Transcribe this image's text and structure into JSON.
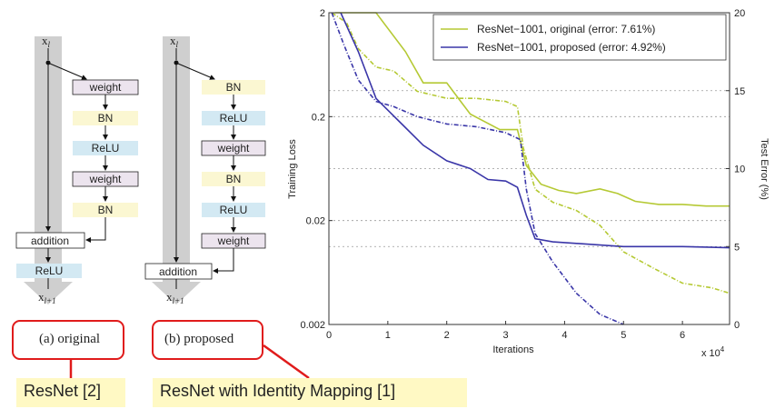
{
  "diagram_a": {
    "input_label": "x",
    "input_sub": "l",
    "output_label": "x",
    "output_sub": "l+1",
    "blocks": [
      "weight",
      "BN",
      "ReLU",
      "weight",
      "BN"
    ],
    "addition_label": "addition",
    "post_relu_label": "ReLU",
    "caption": "(a) original"
  },
  "diagram_b": {
    "input_label": "x",
    "input_sub": "l",
    "output_label": "x",
    "output_sub": "l+1",
    "blocks": [
      "BN",
      "ReLU",
      "weight",
      "BN",
      "ReLU",
      "weight"
    ],
    "addition_label": "addition",
    "caption": "(b) proposed"
  },
  "notes": {
    "left": "ResNet [2]",
    "right": "ResNet with Identity Mapping [1]"
  },
  "colors": {
    "weight_fill": "#ece4ee",
    "bn_fill": "#fbf7d2",
    "relu_fill": "#d3e9f3",
    "shortcut": "#cfcfcf",
    "callout": "#e01b1b",
    "note_bg": "#fff9c4",
    "original": "#b5c934",
    "proposed": "#3a36a8"
  },
  "chart_data": {
    "type": "line",
    "xlabel": "Iterations",
    "x_multiplier_label": "x 10",
    "x_multiplier_exp": "4",
    "ylabel_left": "Training Loss",
    "ylabel_right": "Test Error (%)",
    "xlim": [
      0,
      6.8
    ],
    "x_ticks": [
      0,
      1,
      2,
      3,
      4,
      5,
      6
    ],
    "ylim_left": [
      0.002,
      2
    ],
    "y_ticks_left": [
      {
        "value": 2,
        "label": "2"
      },
      {
        "value": 0.2,
        "label": "0.2"
      },
      {
        "value": 0.02,
        "label": "0.02"
      },
      {
        "value": 0.002,
        "label": "0.002"
      }
    ],
    "left_scale": "log",
    "ylim_right": [
      0,
      20
    ],
    "y_ticks_right": [
      0,
      5,
      10,
      15,
      20
    ],
    "grid": "horizontal dotted",
    "legend_position": "top-right",
    "series": [
      {
        "name": "ResNet−1001, original (error: 7.61%)",
        "color": "#b5c934",
        "test_error": [
          [
            0.1,
            20
          ],
          [
            0.8,
            20
          ],
          [
            1.3,
            17.5
          ],
          [
            1.6,
            15.5
          ],
          [
            2.0,
            15.5
          ],
          [
            2.4,
            13.5
          ],
          [
            2.9,
            12.5
          ],
          [
            3.2,
            12.5
          ],
          [
            3.35,
            10.2
          ],
          [
            3.6,
            9.0
          ],
          [
            3.9,
            8.6
          ],
          [
            4.2,
            8.4
          ],
          [
            4.6,
            8.7
          ],
          [
            4.9,
            8.4
          ],
          [
            5.2,
            7.9
          ],
          [
            5.6,
            7.7
          ],
          [
            6.0,
            7.7
          ],
          [
            6.4,
            7.6
          ],
          [
            6.8,
            7.6
          ]
        ],
        "train_loss": [
          [
            0.05,
            2
          ],
          [
            0.3,
            1.6
          ],
          [
            0.5,
            0.9
          ],
          [
            0.8,
            0.6
          ],
          [
            1.1,
            0.55
          ],
          [
            1.5,
            0.35
          ],
          [
            2.0,
            0.3
          ],
          [
            2.5,
            0.3
          ],
          [
            3.0,
            0.28
          ],
          [
            3.2,
            0.25
          ],
          [
            3.3,
            0.1
          ],
          [
            3.5,
            0.04
          ],
          [
            3.8,
            0.03
          ],
          [
            4.2,
            0.025
          ],
          [
            4.6,
            0.018
          ],
          [
            5.0,
            0.01
          ],
          [
            5.5,
            0.007
          ],
          [
            6.0,
            0.005
          ],
          [
            6.5,
            0.0045
          ],
          [
            6.8,
            0.004
          ]
        ]
      },
      {
        "name": "ResNet−1001, proposed (error: 4.92%)",
        "color": "#3a36a8",
        "test_error": [
          [
            0.2,
            20
          ],
          [
            0.5,
            17.5
          ],
          [
            0.8,
            14.5
          ],
          [
            1.2,
            13.0
          ],
          [
            1.6,
            11.5
          ],
          [
            2.0,
            10.5
          ],
          [
            2.4,
            10.0
          ],
          [
            2.7,
            9.3
          ],
          [
            3.0,
            9.2
          ],
          [
            3.2,
            8.8
          ],
          [
            3.35,
            7.0
          ],
          [
            3.5,
            5.5
          ],
          [
            3.8,
            5.3
          ],
          [
            4.2,
            5.2
          ],
          [
            5.0,
            5.0
          ],
          [
            5.5,
            5.0
          ],
          [
            6.0,
            5.0
          ],
          [
            6.5,
            4.95
          ],
          [
            6.8,
            4.92
          ]
        ],
        "train_loss": [
          [
            0.05,
            2
          ],
          [
            0.25,
            1.0
          ],
          [
            0.5,
            0.45
          ],
          [
            0.8,
            0.28
          ],
          [
            1.1,
            0.25
          ],
          [
            1.5,
            0.2
          ],
          [
            2.0,
            0.17
          ],
          [
            2.5,
            0.16
          ],
          [
            3.0,
            0.14
          ],
          [
            3.25,
            0.12
          ],
          [
            3.35,
            0.04
          ],
          [
            3.5,
            0.015
          ],
          [
            3.8,
            0.008
          ],
          [
            4.2,
            0.004
          ],
          [
            4.6,
            0.0025
          ],
          [
            5.0,
            0.002
          ]
        ]
      }
    ]
  }
}
